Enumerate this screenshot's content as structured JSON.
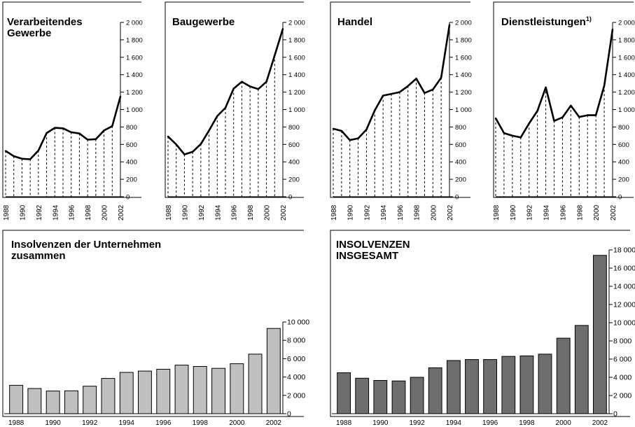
{
  "chart_data": [
    {
      "id": "verarbeitendes",
      "type": "line",
      "title_lines": [
        "Verarbeitendes",
        "Gewerbe"
      ],
      "x": [
        1988,
        1989,
        1990,
        1991,
        1992,
        1993,
        1994,
        1995,
        1996,
        1997,
        1998,
        1999,
        2000,
        2001,
        2002
      ],
      "x_tick_labels": [
        "1988",
        "1990",
        "1992",
        "1994",
        "1996",
        "1998",
        "2000",
        "2002"
      ],
      "values": [
        525,
        465,
        435,
        430,
        530,
        730,
        790,
        785,
        740,
        725,
        655,
        660,
        760,
        810,
        1150
      ],
      "ylim": [
        0,
        2000
      ],
      "y_ticks": [
        "0",
        "200",
        "400",
        "600",
        "800",
        "1 000",
        "1 200",
        "1 400",
        "1 600",
        "1 800",
        "2 000"
      ],
      "drop_lines": true
    },
    {
      "id": "baugewerbe",
      "type": "line",
      "title_lines": [
        "Baugewerbe"
      ],
      "x": [
        1988,
        1989,
        1990,
        1991,
        1992,
        1993,
        1994,
        1995,
        1996,
        1997,
        1998,
        1999,
        2000,
        2001,
        2002
      ],
      "x_tick_labels": [
        "1988",
        "1990",
        "1992",
        "1994",
        "1996",
        "1998",
        "2000",
        "2002"
      ],
      "values": [
        690,
        600,
        485,
        515,
        605,
        760,
        925,
        1020,
        1240,
        1320,
        1265,
        1235,
        1320,
        1620,
        1925
      ],
      "ylim": [
        0,
        2000
      ],
      "y_ticks": [
        "0",
        "200",
        "400",
        "600",
        "800",
        "1 000",
        "1 200",
        "1 400",
        "1 600",
        "1 800",
        "2 000"
      ],
      "drop_lines": true
    },
    {
      "id": "handel",
      "type": "line",
      "title_lines": [
        "Handel"
      ],
      "x": [
        1988,
        1989,
        1990,
        1991,
        1992,
        1993,
        1994,
        1995,
        1996,
        1997,
        1998,
        1999,
        2000,
        2001,
        2002
      ],
      "x_tick_labels": [
        "1988",
        "1990",
        "1992",
        "1994",
        "1996",
        "1998",
        "2000",
        "2002"
      ],
      "values": [
        780,
        755,
        650,
        670,
        770,
        990,
        1160,
        1180,
        1200,
        1270,
        1355,
        1190,
        1230,
        1365,
        1970
      ],
      "ylim": [
        0,
        2000
      ],
      "y_ticks": [
        "0",
        "200",
        "400",
        "600",
        "800",
        "1 000",
        "1 200",
        "1 400",
        "1 600",
        "1 800",
        "2 000"
      ],
      "drop_lines": true
    },
    {
      "id": "dienstleistungen",
      "type": "line",
      "title_lines": [
        "Dienstleistungen"
      ],
      "title_sup": "1)",
      "x": [
        1988,
        1989,
        1990,
        1991,
        1992,
        1993,
        1994,
        1995,
        1996,
        1997,
        1998,
        1999,
        2000,
        2001,
        2002
      ],
      "x_tick_labels": [
        "1988",
        "1990",
        "1992",
        "1994",
        "1996",
        "1998",
        "2000",
        "2002"
      ],
      "values": [
        900,
        730,
        700,
        680,
        840,
        985,
        1255,
        870,
        910,
        1045,
        915,
        935,
        935,
        1275,
        1920
      ],
      "ylim": [
        0,
        2000
      ],
      "y_ticks": [
        "0",
        "200",
        "400",
        "600",
        "800",
        "1 000",
        "1 200",
        "1 400",
        "1 600",
        "1 800",
        "2 000"
      ],
      "drop_lines": true
    },
    {
      "id": "unternehmen",
      "type": "bar",
      "title_lines": [
        "Insolvenzen der Unternehmen",
        "zusammen"
      ],
      "categories": [
        "1988",
        "1989",
        "1990",
        "1991",
        "1992",
        "1993",
        "1994",
        "1995",
        "1996",
        "1997",
        "1998",
        "1999",
        "2000",
        "2001",
        "2002"
      ],
      "x_tick_labels": [
        "1988",
        "",
        "1990",
        "",
        "1992",
        "",
        "1994",
        "",
        "1996",
        "",
        "1998",
        "",
        "2000",
        "",
        "2002"
      ],
      "values": [
        3100,
        2750,
        2470,
        2500,
        3000,
        3850,
        4500,
        4650,
        4850,
        5300,
        5150,
        4950,
        5450,
        6500,
        9300
      ],
      "ylim": [
        0,
        10000
      ],
      "y_ticks": [
        "0",
        "2 000",
        "4 000",
        "6 000",
        "8 000",
        "10 000"
      ],
      "bar_color": "#c0c0c0"
    },
    {
      "id": "insgesamt",
      "type": "bar",
      "title_lines": [
        "INSOLVENZEN",
        "INSGESAMT"
      ],
      "categories": [
        "1988",
        "1989",
        "1990",
        "1991",
        "1992",
        "1993",
        "1994",
        "1995",
        "1996",
        "1997",
        "1998",
        "1999",
        "2000",
        "2001",
        "2002"
      ],
      "x_tick_labels": [
        "1988",
        "",
        "1990",
        "",
        "1992",
        "",
        "1994",
        "",
        "1996",
        "",
        "1998",
        "",
        "2000",
        "",
        "2002"
      ],
      "values": [
        4500,
        3900,
        3650,
        3600,
        4000,
        5050,
        5850,
        5950,
        5950,
        6300,
        6350,
        6550,
        8300,
        9700,
        17400
      ],
      "ylim": [
        0,
        18000
      ],
      "y_ticks": [
        "0",
        "2 000",
        "4 000",
        "6 000",
        "8 000",
        "10 000",
        "12 000",
        "14 000",
        "16 000",
        "18 000"
      ],
      "bar_color": "#6e6e6e"
    }
  ]
}
